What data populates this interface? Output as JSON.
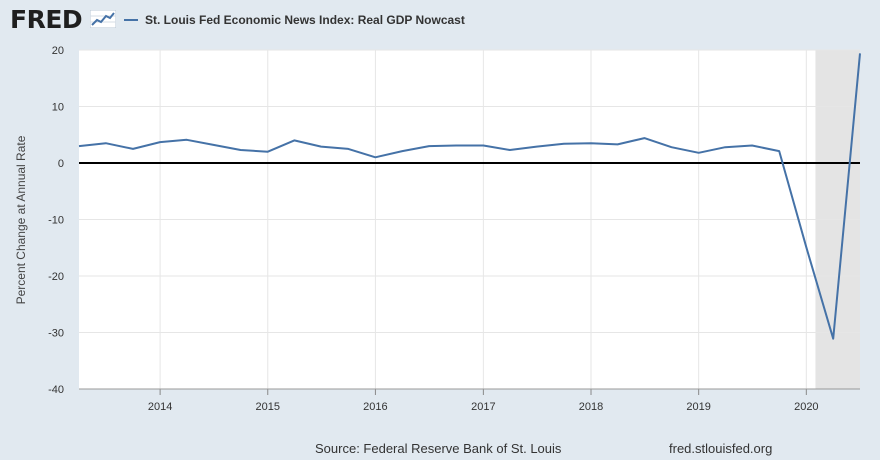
{
  "header": {
    "logo_text": "FRED",
    "logo_icon": "line-graph-icon",
    "legend_label": "St. Louis Fed Economic News Index: Real GDP Nowcast"
  },
  "footer": {
    "source": "Source: Federal Reserve Bank of St. Louis",
    "url": "fred.stlouisfed.org"
  },
  "colors": {
    "series": "#4572a7",
    "plot_background": "#ffffff",
    "page_background": "#e1e9f0",
    "recession_band": "#e4e4e4",
    "grid": "#e6e6e6",
    "zero_line": "#000000"
  },
  "chart_data": {
    "type": "line",
    "title": "",
    "xlabel": "",
    "ylabel": "Percent Change at Annual Rate",
    "ylim": [
      -40,
      20
    ],
    "yticks": [
      20,
      10,
      0,
      -10,
      -20,
      -30,
      -40
    ],
    "xlim": [
      "2013-04-01",
      "2020-07-01"
    ],
    "xticks": [
      "2014",
      "2015",
      "2016",
      "2017",
      "2018",
      "2019",
      "2020"
    ],
    "grid": true,
    "legend": "top",
    "reference_line": 0,
    "recession_shading": {
      "start": "2020-02-01",
      "end": "2020-07-01"
    },
    "series": [
      {
        "name": "St. Louis Fed Economic News Index: Real GDP Nowcast",
        "x": [
          "2013-04-01",
          "2013-07-01",
          "2013-10-01",
          "2014-01-01",
          "2014-04-01",
          "2014-07-01",
          "2014-10-01",
          "2015-01-01",
          "2015-04-01",
          "2015-07-01",
          "2015-10-01",
          "2016-01-01",
          "2016-04-01",
          "2016-07-01",
          "2016-10-01",
          "2017-01-01",
          "2017-04-01",
          "2017-07-01",
          "2017-10-01",
          "2018-01-01",
          "2018-04-01",
          "2018-07-01",
          "2018-10-01",
          "2019-01-01",
          "2019-04-01",
          "2019-07-01",
          "2019-10-01",
          "2020-01-01",
          "2020-04-01",
          "2020-07-01"
        ],
        "values": [
          3.0,
          3.5,
          2.5,
          3.7,
          4.1,
          3.2,
          2.3,
          2.0,
          4.0,
          2.9,
          2.5,
          1.0,
          2.1,
          3.0,
          3.1,
          3.1,
          2.3,
          2.9,
          3.4,
          3.5,
          3.3,
          4.4,
          2.8,
          1.8,
          2.8,
          3.1,
          2.1,
          -14.9,
          -31.1,
          19.4
        ]
      }
    ]
  }
}
